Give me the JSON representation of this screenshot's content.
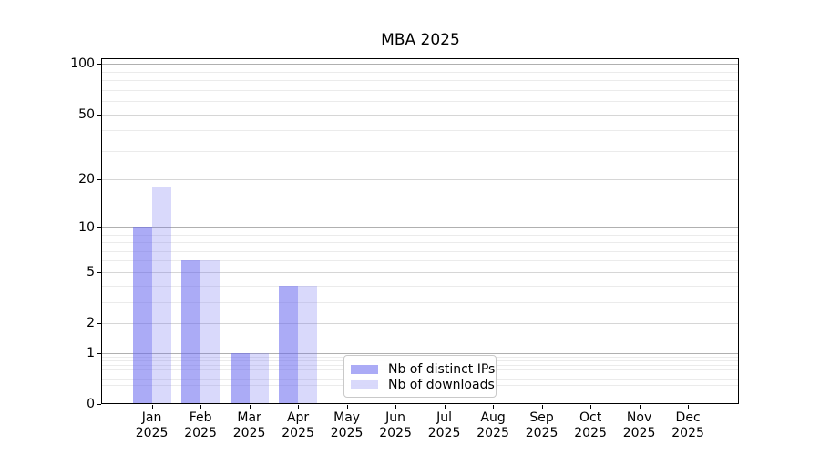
{
  "chart_data": {
    "type": "bar",
    "title": "MBA 2025",
    "categories": [
      "Jan",
      "Feb",
      "Mar",
      "Apr",
      "May",
      "Jun",
      "Jul",
      "Aug",
      "Sep",
      "Oct",
      "Nov",
      "Dec"
    ],
    "x_tick_year": "2025",
    "series": [
      {
        "name": "Nb of distinct IPs",
        "color": "rgba(102,102,238,0.55)",
        "values": [
          10,
          6,
          1,
          4,
          0,
          0,
          0,
          0,
          0,
          0,
          0,
          0
        ]
      },
      {
        "name": "Nb of downloads",
        "color": "rgba(102,102,238,0.25)",
        "values": [
          18,
          6,
          1,
          4,
          0,
          0,
          0,
          0,
          0,
          0,
          0,
          0
        ]
      }
    ],
    "y_axis": {
      "scale": "log1p",
      "ticks": [
        0,
        1,
        2,
        5,
        10,
        20,
        50,
        100
      ],
      "minor_ticks": [
        0.3,
        0.4,
        0.6,
        0.7,
        0.8,
        0.9,
        3,
        4,
        6,
        7,
        8,
        9,
        30,
        40,
        60,
        70,
        80,
        90
      ],
      "max": 108
    },
    "grid": {
      "enabled": true,
      "decade_line_color": "#b0b0b0",
      "labeled_line_color": "#d6d6d6",
      "minor_line_color": "#ebebeb"
    },
    "legend": {
      "position": "lower-center-inside"
    },
    "background": "#ffffff"
  }
}
